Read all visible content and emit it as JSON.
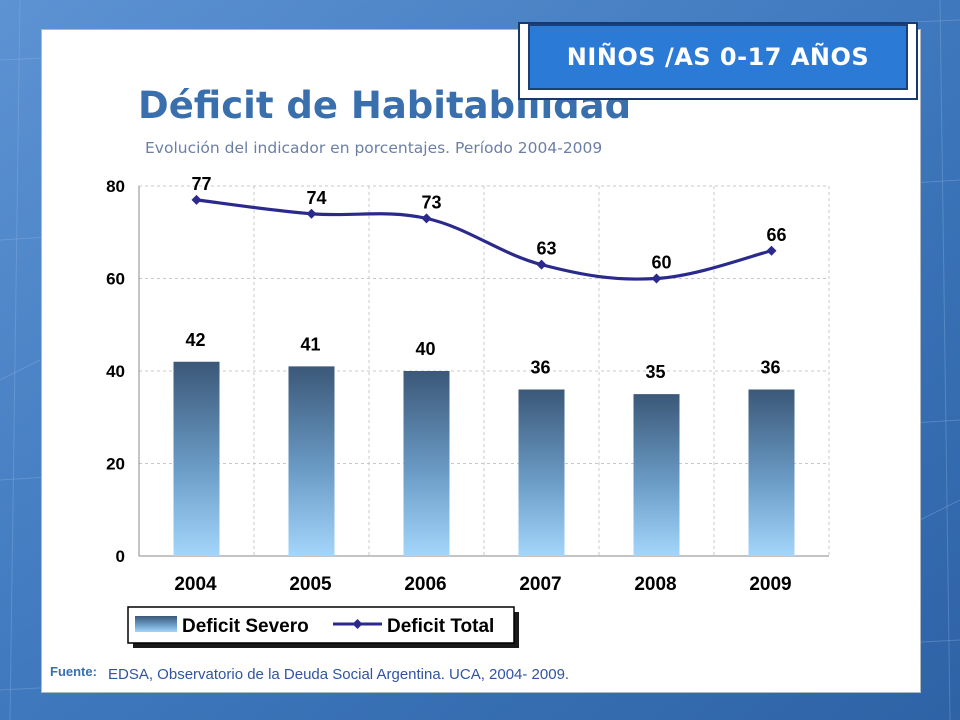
{
  "badge": {
    "text": "NIÑOS /AS 0-17 AÑOS"
  },
  "colors": {
    "line": "#2b2a8c",
    "bar_top": "#3b5878",
    "bar_bottom": "#9fd1f7",
    "title": "#3a6fae",
    "subtitle": "#6b7fa6"
  },
  "chart_data": {
    "type": "bar",
    "title": "Déficit de Habitabilidad",
    "subtitle": "Evolución del indicador en porcentajes.  Período 2004-2009",
    "categories": [
      "2004",
      "2005",
      "2006",
      "2007",
      "2008",
      "2009"
    ],
    "series": [
      {
        "name": "Deficit Severo",
        "type": "bar",
        "values": [
          42,
          41,
          40,
          36,
          35,
          36
        ]
      },
      {
        "name": "Deficit Total",
        "type": "line",
        "values": [
          77,
          74,
          73,
          63,
          60,
          66
        ]
      }
    ],
    "ylim": [
      0,
      80
    ],
    "yticks": [
      "0",
      "20",
      "40",
      "60",
      "80"
    ],
    "xlabel": "",
    "ylabel": "",
    "grid": true,
    "legend_position": "bottom-left"
  },
  "source": {
    "label": "Fuente:",
    "text": "EDSA, Observatorio de la Deuda Social Argentina. UCA, 2004- 2009."
  }
}
